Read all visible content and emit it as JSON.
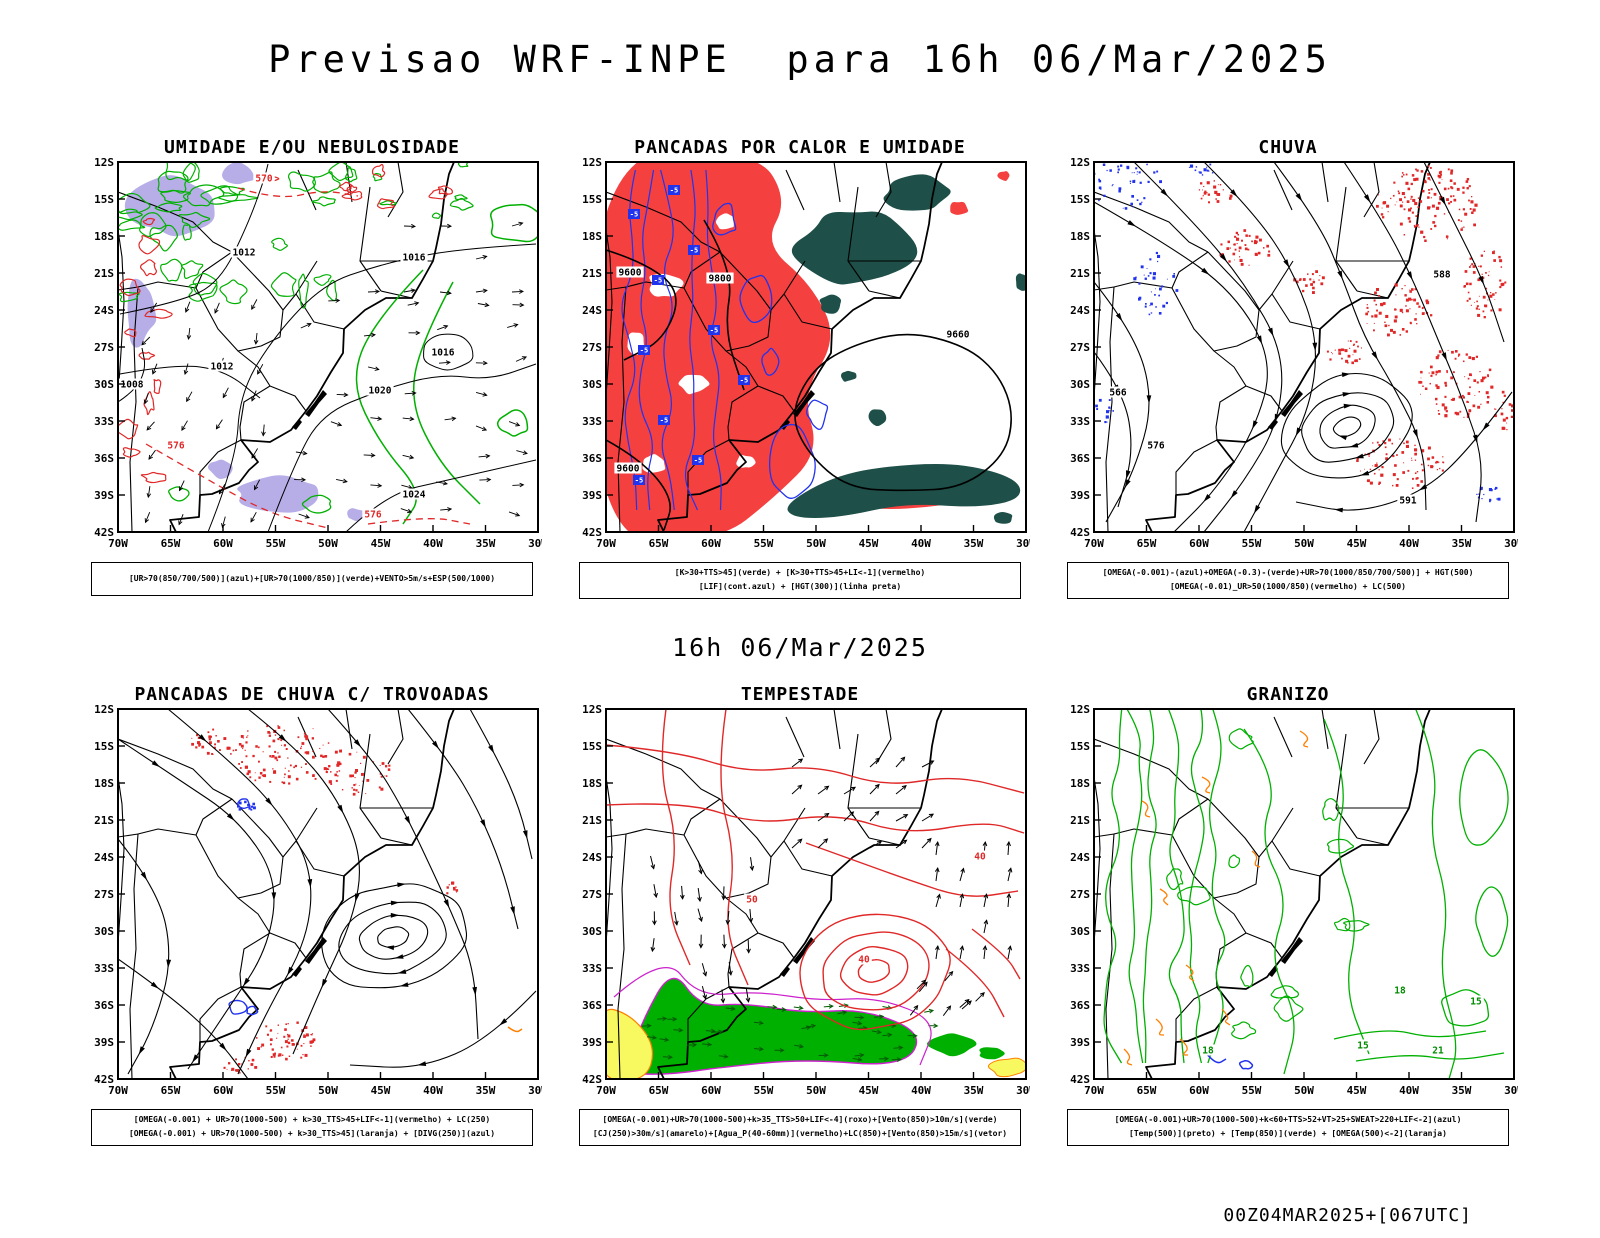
{
  "page": {
    "title": "Previsao WRF-INPE  para 16h 06/Mar/2025",
    "center_label": "16h 06/Mar/2025",
    "footer": "00Z04MAR2025+[067UTC]"
  },
  "axes": {
    "lat_ticks": [
      "12S",
      "15S",
      "18S",
      "21S",
      "24S",
      "27S",
      "30S",
      "33S",
      "36S",
      "39S",
      "42S"
    ],
    "lon_ticks": [
      "70W",
      "65W",
      "60W",
      "55W",
      "50W",
      "45W",
      "40W",
      "35W",
      "30W"
    ]
  },
  "colors": {
    "green": "#00b000",
    "red": "#e02828",
    "map_red_fill": "#f54040",
    "blue": "#2233ee",
    "dark_teal": "#1e4f48",
    "lavender": "#b7aee8",
    "orange": "#ff7f00",
    "yellow": "#f8f860",
    "magenta": "#cc22cc",
    "black": "#000000"
  },
  "panels": [
    {
      "id": "umidade",
      "title": "UMIDADE E/OU NEBULOSIDADE",
      "caption": [
        "[UR>70(850/700/500)](azul)+[UR>70(1000/850)](verde)+VENTO>5m/s+ESP(500/1000)"
      ],
      "contour_labels": {
        "black": [
          "1008",
          "1012",
          "1016",
          "1020",
          "1024"
        ],
        "red": [
          "570",
          "576"
        ]
      }
    },
    {
      "id": "pancadas-calor",
      "title": "PANCADAS POR CALOR E UMIDADE",
      "caption": [
        "[K>30+TTS>45](verde) + [K>30+TTS>45+LI<-1](vermelho)",
        "[LIF](cont.azul) + [HGT(300)](linha preta)"
      ],
      "contour_labels": {
        "black": [
          "9600",
          "9660",
          "9800"
        ],
        "blue": [
          "-5"
        ]
      }
    },
    {
      "id": "chuva",
      "title": "CHUVA",
      "caption": [
        "[OMEGA(-0.001)-(azul)+OMEGA(-0.3)-(verde)+UR>70(1000/850/700/500)] + HGT(500)",
        "[OMEGA(-0.01)_UR>50(1000/850)(vermelho) + LC(500)"
      ],
      "contour_labels": {
        "black": [
          "566",
          "576",
          "588",
          "591"
        ]
      }
    },
    {
      "id": "trovoadas",
      "title": "PANCADAS DE CHUVA C/ TROVOADAS",
      "caption": [
        "[OMEGA(-0.001) + UR>70(1000-500) + k>30_TTS>45+LIF<-1](vermelho) + LC(250)",
        "[OMEGA(-0.001) + UR>70(1000-500) + k>30_TTS>45](laranja) + [DIVG(250)](azul)"
      ]
    },
    {
      "id": "tempestade",
      "title": "TEMPESTADE",
      "caption": [
        "[OMEGA(-0.001)+UR>70(1000-500)+k>35_TTS>50+LIF<-4](roxo)+[Vento(850)>10m/s](verde)",
        "[CJ(250)>30m/s](amarelo)+[Agua_P(40-60mm)](vermelho)+LC(850)+[Vento(850)>15m/s](vetor)"
      ],
      "contour_labels": {
        "red": [
          "40",
          "50"
        ]
      }
    },
    {
      "id": "granizo",
      "title": "GRANIZO",
      "caption": [
        "[OMEGA(-0.001)+UR>70(1000-500)+k<60+TTS>52+VT>25+SWEAT>220+LIF<-2](azul)",
        "[Temp(500)](preto) + [Temp(850)](verde) + [OMEGA(500)<-2](laranja)"
      ],
      "contour_labels": {
        "green": [
          "15",
          "18",
          "21"
        ]
      }
    }
  ]
}
